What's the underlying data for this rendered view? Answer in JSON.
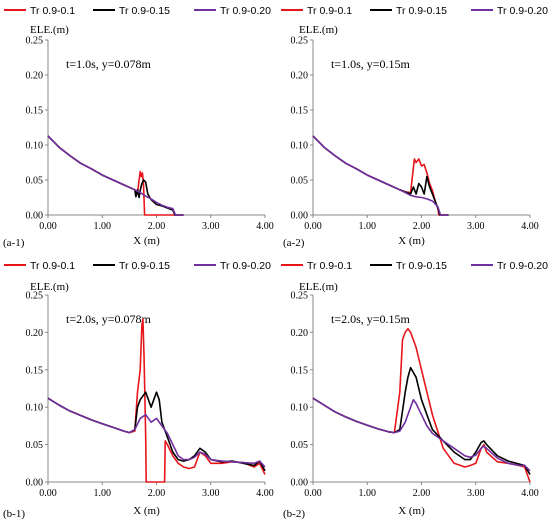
{
  "chart_data": [
    {
      "id": "a1",
      "type": "line",
      "panel_label": "(a-1)",
      "annotation": "t=1.0s, y=0.078m",
      "xlabel": "X (m)",
      "ylabel": "ELE.(m)",
      "xlim": [
        0,
        4
      ],
      "ylim": [
        0,
        0.25
      ],
      "xticks": [
        "0.00",
        "1.00",
        "2.00",
        "3.00",
        "4.00"
      ],
      "yticks": [
        "0.00",
        "0.05",
        "0.10",
        "0.15",
        "0.20",
        "0.25"
      ],
      "legend": [
        "Tr 0.9-0.1",
        "Tr 0.9-0.15",
        "Tr 0.9-0.20"
      ],
      "series": [
        {
          "name": "Tr 0.9-0.1",
          "color": "#e8161b",
          "x": [
            0,
            0.2,
            0.4,
            0.6,
            0.8,
            1.0,
            1.2,
            1.4,
            1.6,
            1.65,
            1.68,
            1.7,
            1.72,
            1.74,
            1.76,
            1.78,
            1.8,
            2.5
          ],
          "y": [
            0.113,
            0.097,
            0.085,
            0.074,
            0.066,
            0.057,
            0.05,
            0.043,
            0.036,
            0.03,
            0.05,
            0.062,
            0.055,
            0.06,
            0.045,
            0.0,
            0.0,
            0.0
          ]
        },
        {
          "name": "Tr 0.9-0.15",
          "color": "#000000",
          "x": [
            0,
            0.2,
            0.4,
            0.6,
            0.8,
            1.0,
            1.2,
            1.4,
            1.6,
            1.62,
            1.65,
            1.68,
            1.7,
            1.73,
            1.76,
            1.8,
            1.84,
            1.9,
            2.0,
            2.1,
            2.2,
            2.3,
            2.34,
            2.5
          ],
          "y": [
            0.113,
            0.097,
            0.085,
            0.074,
            0.066,
            0.057,
            0.05,
            0.043,
            0.036,
            0.026,
            0.036,
            0.025,
            0.035,
            0.045,
            0.05,
            0.047,
            0.03,
            0.022,
            0.015,
            0.013,
            0.01,
            0.007,
            0.0,
            0.0
          ]
        },
        {
          "name": "Tr 0.9-0.20",
          "color": "#7030a0",
          "x": [
            0,
            0.2,
            0.4,
            0.6,
            0.8,
            1.0,
            1.2,
            1.4,
            1.6,
            1.7,
            1.8,
            1.9,
            2.0,
            2.1,
            2.2,
            2.3,
            2.35,
            2.5
          ],
          "y": [
            0.113,
            0.097,
            0.085,
            0.074,
            0.066,
            0.057,
            0.05,
            0.043,
            0.036,
            0.032,
            0.027,
            0.023,
            0.018,
            0.014,
            0.011,
            0.009,
            0.0,
            0.0
          ]
        }
      ]
    },
    {
      "id": "a2",
      "type": "line",
      "panel_label": "(a-2)",
      "annotation": "t=1.0s, y=0.15m",
      "xlabel": "X (m)",
      "ylabel": "ELE.(m)",
      "xlim": [
        0,
        4
      ],
      "ylim": [
        0,
        0.25
      ],
      "xticks": [
        "0.00",
        "1.00",
        "2.00",
        "3.00",
        "4.00"
      ],
      "yticks": [
        "0.00",
        "0.05",
        "0.10",
        "0.15",
        "0.20",
        "0.25"
      ],
      "legend": [
        "Tr 0.9-0.1",
        "Tr 0.9-0.15",
        "Tr 0.9-0.20"
      ],
      "series": [
        {
          "name": "Tr 0.9-0.1",
          "color": "#e8161b",
          "x": [
            0,
            0.2,
            0.4,
            0.6,
            0.8,
            1.0,
            1.2,
            1.4,
            1.6,
            1.7,
            1.8,
            1.84,
            1.87,
            1.9,
            1.95,
            2.0,
            2.05,
            2.1,
            2.15,
            2.2,
            2.25,
            2.3,
            2.32,
            2.5
          ],
          "y": [
            0.113,
            0.097,
            0.085,
            0.074,
            0.066,
            0.057,
            0.05,
            0.043,
            0.036,
            0.033,
            0.032,
            0.06,
            0.08,
            0.075,
            0.08,
            0.07,
            0.072,
            0.06,
            0.045,
            0.035,
            0.02,
            0.01,
            0.0,
            0.0
          ]
        },
        {
          "name": "Tr 0.9-0.15",
          "color": "#000000",
          "x": [
            0,
            0.2,
            0.4,
            0.6,
            0.8,
            1.0,
            1.2,
            1.4,
            1.6,
            1.7,
            1.8,
            1.85,
            1.9,
            1.95,
            2.0,
            2.05,
            2.1,
            2.15,
            2.2,
            2.25,
            2.3,
            2.34,
            2.5
          ],
          "y": [
            0.113,
            0.097,
            0.085,
            0.074,
            0.066,
            0.057,
            0.05,
            0.043,
            0.036,
            0.033,
            0.03,
            0.04,
            0.03,
            0.045,
            0.04,
            0.03,
            0.055,
            0.04,
            0.03,
            0.02,
            0.01,
            0.0,
            0.0
          ]
        },
        {
          "name": "Tr 0.9-0.20",
          "color": "#7030a0",
          "x": [
            0,
            0.2,
            0.4,
            0.6,
            0.8,
            1.0,
            1.2,
            1.4,
            1.6,
            1.7,
            1.8,
            1.9,
            2.0,
            2.1,
            2.2,
            2.3,
            2.35,
            2.5
          ],
          "y": [
            0.113,
            0.097,
            0.085,
            0.074,
            0.066,
            0.057,
            0.05,
            0.043,
            0.036,
            0.032,
            0.028,
            0.026,
            0.025,
            0.023,
            0.02,
            0.012,
            0.0,
            0.0
          ]
        }
      ]
    },
    {
      "id": "b1",
      "type": "line",
      "panel_label": "(b-1)",
      "annotation": "t=2.0s, y=0.078m",
      "xlabel": "X (m)",
      "ylabel": "ELE.(m)",
      "xlim": [
        0,
        4
      ],
      "ylim": [
        0,
        0.25
      ],
      "xticks": [
        "0.00",
        "1.00",
        "2.00",
        "3.00",
        "4.00"
      ],
      "yticks": [
        "0.00",
        "0.05",
        "0.10",
        "0.15",
        "0.20",
        "0.25"
      ],
      "legend": [
        "Tr 0.9-0.1",
        "Tr 0.9-0.15",
        "Tr 0.9-0.20"
      ],
      "series": [
        {
          "name": "Tr 0.9-0.1",
          "color": "#e8161b",
          "x": [
            0,
            0.2,
            0.4,
            0.6,
            0.8,
            1.0,
            1.2,
            1.4,
            1.5,
            1.6,
            1.65,
            1.7,
            1.73,
            1.75,
            1.77,
            1.8,
            1.81,
            2.0,
            2.15,
            2.16,
            2.2,
            2.3,
            2.4,
            2.5,
            2.6,
            2.7,
            2.8,
            2.9,
            3.0,
            3.2,
            3.4,
            3.6,
            3.8,
            3.9,
            4.0
          ],
          "y": [
            0.112,
            0.103,
            0.095,
            0.089,
            0.083,
            0.078,
            0.073,
            0.068,
            0.066,
            0.068,
            0.12,
            0.15,
            0.21,
            0.218,
            0.17,
            0.06,
            0.0,
            0.0,
            0.0,
            0.055,
            0.05,
            0.035,
            0.025,
            0.02,
            0.018,
            0.02,
            0.04,
            0.035,
            0.025,
            0.025,
            0.027,
            0.026,
            0.02,
            0.025,
            0.01
          ]
        },
        {
          "name": "Tr 0.9-0.15",
          "color": "#000000",
          "x": [
            0,
            0.2,
            0.4,
            0.6,
            0.8,
            1.0,
            1.2,
            1.4,
            1.5,
            1.6,
            1.65,
            1.7,
            1.8,
            1.9,
            1.95,
            2.0,
            2.05,
            2.1,
            2.2,
            2.3,
            2.4,
            2.5,
            2.6,
            2.7,
            2.8,
            2.9,
            3.0,
            3.2,
            3.4,
            3.6,
            3.8,
            3.9,
            4.0
          ],
          "y": [
            0.112,
            0.103,
            0.095,
            0.089,
            0.083,
            0.078,
            0.073,
            0.068,
            0.066,
            0.07,
            0.1,
            0.11,
            0.12,
            0.1,
            0.11,
            0.12,
            0.11,
            0.08,
            0.06,
            0.04,
            0.03,
            0.028,
            0.03,
            0.035,
            0.045,
            0.04,
            0.03,
            0.027,
            0.028,
            0.025,
            0.022,
            0.028,
            0.015
          ]
        },
        {
          "name": "Tr 0.9-0.20",
          "color": "#7030a0",
          "x": [
            0,
            0.2,
            0.4,
            0.6,
            0.8,
            1.0,
            1.2,
            1.4,
            1.5,
            1.6,
            1.7,
            1.8,
            1.9,
            2.0,
            2.1,
            2.2,
            2.3,
            2.4,
            2.5,
            2.6,
            2.7,
            2.8,
            2.9,
            3.0,
            3.2,
            3.4,
            3.6,
            3.8,
            3.9,
            4.0
          ],
          "y": [
            0.112,
            0.103,
            0.095,
            0.089,
            0.083,
            0.078,
            0.073,
            0.068,
            0.066,
            0.07,
            0.085,
            0.09,
            0.08,
            0.085,
            0.075,
            0.065,
            0.05,
            0.035,
            0.03,
            0.03,
            0.033,
            0.04,
            0.037,
            0.03,
            0.028,
            0.027,
            0.026,
            0.025,
            0.028,
            0.02
          ]
        }
      ]
    },
    {
      "id": "b2",
      "type": "line",
      "panel_label": "(b-2)",
      "annotation": "t=2.0s, y=0.15m",
      "xlabel": "X (m)",
      "ylabel": "ELE.(m)",
      "xlim": [
        0,
        4
      ],
      "ylim": [
        0,
        0.25
      ],
      "xticks": [
        "0.00",
        "1.00",
        "2.00",
        "3.00",
        "4.00"
      ],
      "yticks": [
        "0.00",
        "0.05",
        "0.10",
        "0.15",
        "0.20",
        "0.25"
      ],
      "legend": [
        "Tr 0.9-0.1",
        "Tr 0.9-0.15",
        "Tr 0.9-0.20"
      ],
      "series": [
        {
          "name": "Tr 0.9-0.1",
          "color": "#e8161b",
          "x": [
            0,
            0.2,
            0.4,
            0.6,
            0.8,
            1.0,
            1.2,
            1.4,
            1.5,
            1.6,
            1.65,
            1.7,
            1.75,
            1.8,
            1.9,
            2.0,
            2.1,
            2.2,
            2.4,
            2.6,
            2.8,
            2.9,
            3.0,
            3.05,
            3.1,
            3.15,
            3.2,
            3.4,
            3.6,
            3.8,
            3.9,
            4.0
          ],
          "y": [
            0.112,
            0.103,
            0.094,
            0.087,
            0.081,
            0.076,
            0.071,
            0.067,
            0.066,
            0.12,
            0.19,
            0.2,
            0.205,
            0.2,
            0.18,
            0.15,
            0.12,
            0.09,
            0.045,
            0.025,
            0.02,
            0.022,
            0.025,
            0.035,
            0.045,
            0.05,
            0.04,
            0.027,
            0.025,
            0.022,
            0.02,
            0.0
          ]
        },
        {
          "name": "Tr 0.9-0.15",
          "color": "#000000",
          "x": [
            0,
            0.2,
            0.4,
            0.6,
            0.8,
            1.0,
            1.2,
            1.4,
            1.5,
            1.6,
            1.7,
            1.75,
            1.8,
            1.9,
            2.0,
            2.1,
            2.2,
            2.4,
            2.6,
            2.8,
            2.9,
            3.0,
            3.1,
            3.15,
            3.2,
            3.4,
            3.6,
            3.8,
            3.9,
            4.0
          ],
          "y": [
            0.112,
            0.103,
            0.094,
            0.087,
            0.081,
            0.076,
            0.071,
            0.067,
            0.066,
            0.07,
            0.12,
            0.14,
            0.153,
            0.14,
            0.11,
            0.09,
            0.07,
            0.055,
            0.04,
            0.03,
            0.03,
            0.04,
            0.053,
            0.055,
            0.05,
            0.035,
            0.028,
            0.024,
            0.022,
            0.01
          ]
        },
        {
          "name": "Tr 0.9-0.20",
          "color": "#7030a0",
          "x": [
            0,
            0.2,
            0.4,
            0.6,
            0.8,
            1.0,
            1.2,
            1.4,
            1.5,
            1.6,
            1.7,
            1.8,
            1.85,
            1.9,
            2.0,
            2.1,
            2.2,
            2.4,
            2.6,
            2.8,
            2.9,
            3.0,
            3.1,
            3.15,
            3.2,
            3.4,
            3.6,
            3.8,
            3.9,
            4.0
          ],
          "y": [
            0.112,
            0.103,
            0.094,
            0.087,
            0.081,
            0.076,
            0.071,
            0.067,
            0.066,
            0.068,
            0.08,
            0.1,
            0.11,
            0.105,
            0.09,
            0.075,
            0.065,
            0.055,
            0.045,
            0.035,
            0.033,
            0.036,
            0.045,
            0.048,
            0.045,
            0.032,
            0.025,
            0.022,
            0.022,
            0.015
          ]
        }
      ]
    }
  ]
}
